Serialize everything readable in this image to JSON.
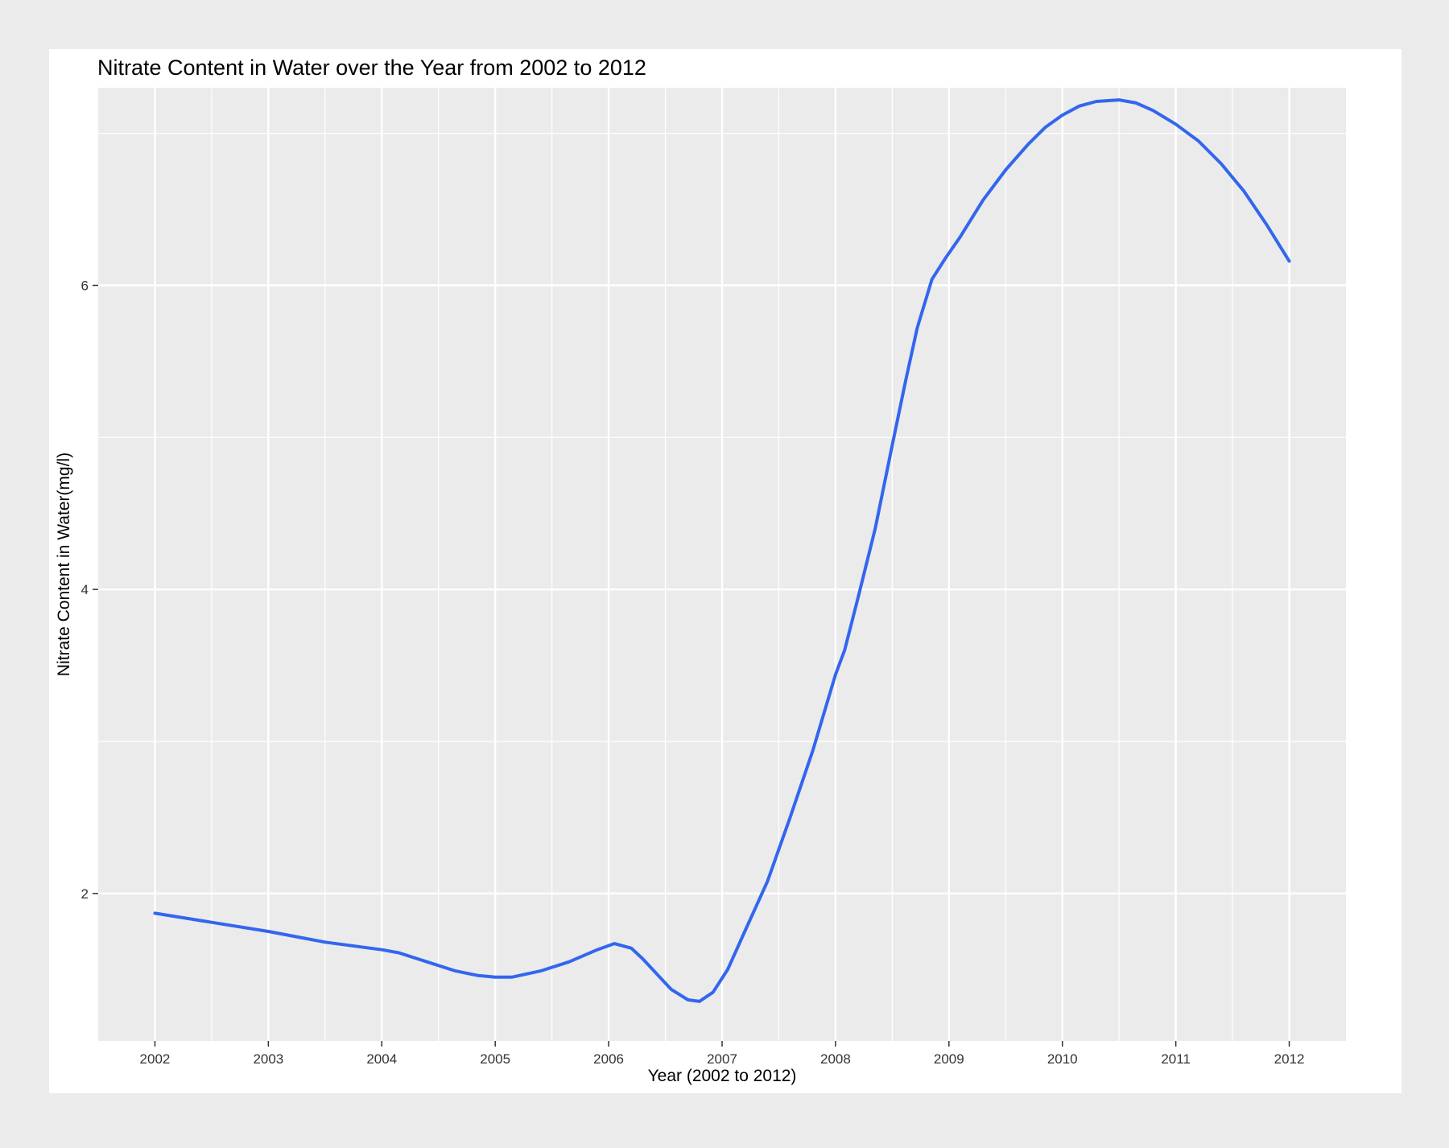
{
  "chart_data": {
    "type": "line",
    "title": "Nitrate Content in Water over the Year from 2002 to 2012",
    "xlabel": "Year (2002 to 2012)",
    "ylabel": "Nitrate Content in Water(mg/l)",
    "xlim": [
      2001.5,
      2012.5
    ],
    "ylim": [
      1.03,
      7.3
    ],
    "x_ticks": [
      2002,
      2003,
      2004,
      2005,
      2006,
      2007,
      2008,
      2009,
      2010,
      2011,
      2012
    ],
    "x_tick_labels": [
      "2002",
      "2003",
      "2004",
      "2005",
      "2006",
      "2007",
      "2008",
      "2009",
      "2010",
      "2011",
      "2012"
    ],
    "y_ticks": [
      2,
      4,
      6
    ],
    "y_tick_labels": [
      "2",
      "4",
      "6"
    ],
    "grid": true,
    "series": [
      {
        "color": "#3366ee",
        "x": [
          2002.0,
          2002.5,
          2003.0,
          2003.5,
          2004.0,
          2004.15,
          2004.4,
          2004.65,
          2004.85,
          2005.0,
          2005.15,
          2005.4,
          2005.65,
          2005.9,
          2006.05,
          2006.2,
          2006.3,
          2006.45,
          2006.55,
          2006.7,
          2006.8,
          2006.92,
          2007.05,
          2007.2,
          2007.4,
          2007.6,
          2007.8,
          2008.0,
          2008.08,
          2008.2,
          2008.35,
          2008.5,
          2008.62,
          2008.72,
          2008.85,
          2008.97,
          2009.1,
          2009.3,
          2009.5,
          2009.7,
          2009.85,
          2010.0,
          2010.15,
          2010.3,
          2010.5,
          2010.65,
          2010.8,
          2011.0,
          2011.2,
          2011.4,
          2011.6,
          2011.8,
          2012.0
        ],
        "y": [
          1.87,
          1.81,
          1.75,
          1.68,
          1.63,
          1.61,
          1.55,
          1.49,
          1.46,
          1.45,
          1.45,
          1.49,
          1.55,
          1.63,
          1.67,
          1.64,
          1.57,
          1.45,
          1.37,
          1.3,
          1.29,
          1.35,
          1.5,
          1.75,
          2.08,
          2.5,
          2.94,
          3.44,
          3.6,
          3.95,
          4.4,
          4.95,
          5.38,
          5.72,
          6.04,
          6.18,
          6.32,
          6.56,
          6.76,
          6.93,
          7.04,
          7.12,
          7.18,
          7.21,
          7.22,
          7.2,
          7.15,
          7.06,
          6.95,
          6.8,
          6.62,
          6.4,
          6.16
        ]
      }
    ]
  }
}
